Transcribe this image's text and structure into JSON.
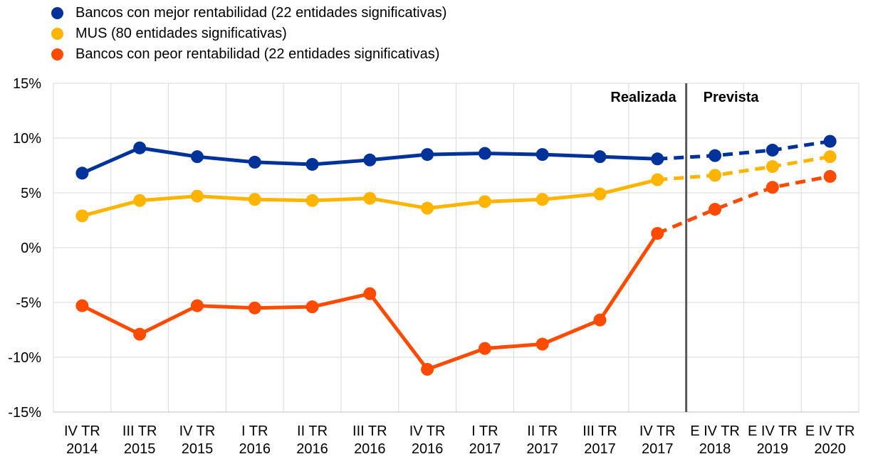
{
  "chart_data": {
    "type": "line",
    "categories": [
      [
        "IV TR",
        "2014"
      ],
      [
        "III TR",
        "2015"
      ],
      [
        "IV TR",
        "2015"
      ],
      [
        "I TR",
        "2016"
      ],
      [
        "II TR",
        "2016"
      ],
      [
        "III TR",
        "2016"
      ],
      [
        "IV TR",
        "2016"
      ],
      [
        "I TR",
        "2017"
      ],
      [
        "II TR",
        "2017"
      ],
      [
        "III TR",
        "2017"
      ],
      [
        "IV TR",
        "2017"
      ],
      [
        "E IV TR",
        "2018"
      ],
      [
        "E IV TR",
        "2019"
      ],
      [
        "E IV TR",
        "2020"
      ]
    ],
    "y_ticks": [
      "15%",
      "10%",
      "5%",
      "0%",
      "-5%",
      "-10%",
      "-15%"
    ],
    "ylim": [
      -15,
      15
    ],
    "y_step": 5,
    "grid": true,
    "legend_position": "top-left",
    "actual_count": 11,
    "annotations": {
      "actual": "Realizada",
      "forecast": "Prevista"
    },
    "series": [
      {
        "name": "Bancos con mejor rentabilidad (22 entidades significativas)",
        "color": "#003299",
        "values": [
          6.8,
          9.1,
          8.3,
          7.8,
          7.6,
          8.0,
          8.5,
          8.6,
          8.5,
          8.3,
          8.1,
          8.4,
          8.9,
          9.7
        ]
      },
      {
        "name": "MUS (80 entidades significativas)",
        "color": "#FFB400",
        "values": [
          2.9,
          4.3,
          4.7,
          4.4,
          4.3,
          4.5,
          3.6,
          4.2,
          4.4,
          4.9,
          6.2,
          6.6,
          7.4,
          8.3
        ]
      },
      {
        "name": "Bancos con peor rentabilidad (22 entidades significativas)",
        "color": "#FF4B00",
        "values": [
          -5.3,
          -7.9,
          -5.3,
          -5.5,
          -5.4,
          -4.2,
          -11.1,
          -9.2,
          -8.8,
          -6.6,
          1.3,
          3.5,
          5.5,
          6.5
        ]
      }
    ]
  }
}
